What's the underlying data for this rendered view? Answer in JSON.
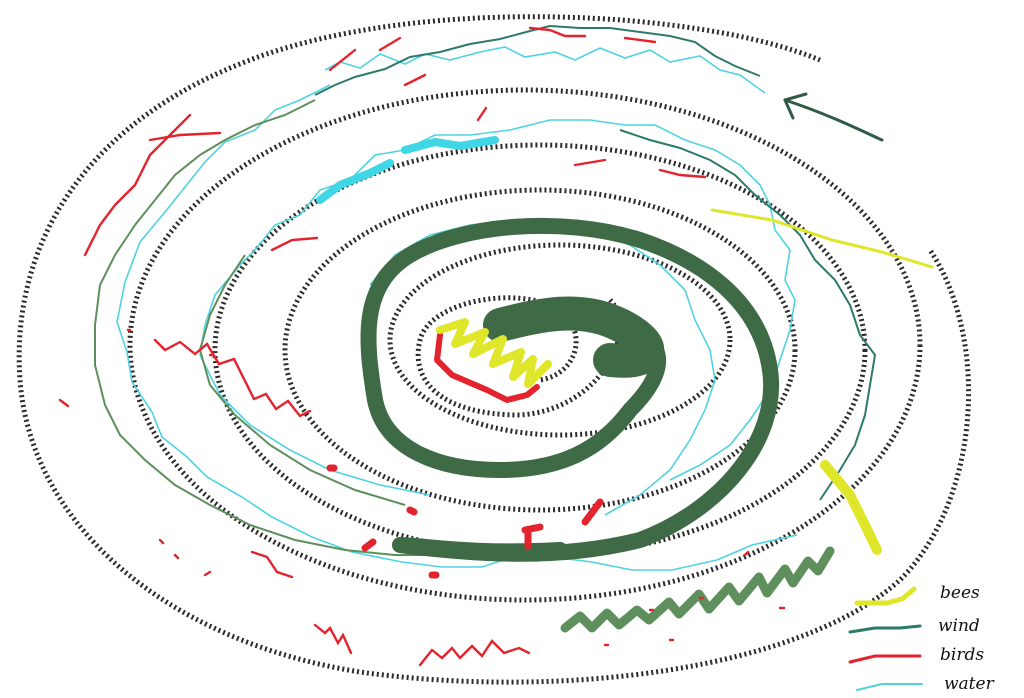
{
  "legend": {
    "items": [
      {
        "key": "bees",
        "label": "bees",
        "color": "#e0e62a"
      },
      {
        "key": "wind",
        "label": "wind",
        "color": "#2d7a6a"
      },
      {
        "key": "birds",
        "label": "birds",
        "color": "#e3232d"
      },
      {
        "key": "water",
        "label": "water",
        "color": "#4fd3e0"
      }
    ]
  },
  "colors": {
    "spiral_path": "#2b2b2b",
    "forest_track": "#3f6a46",
    "light_green_track": "#5e8f5c",
    "arrow": "#2f5a44",
    "cyan_blob": "#3fd6e6"
  },
  "icons": {
    "direction_arrow": "arrow-icon"
  }
}
